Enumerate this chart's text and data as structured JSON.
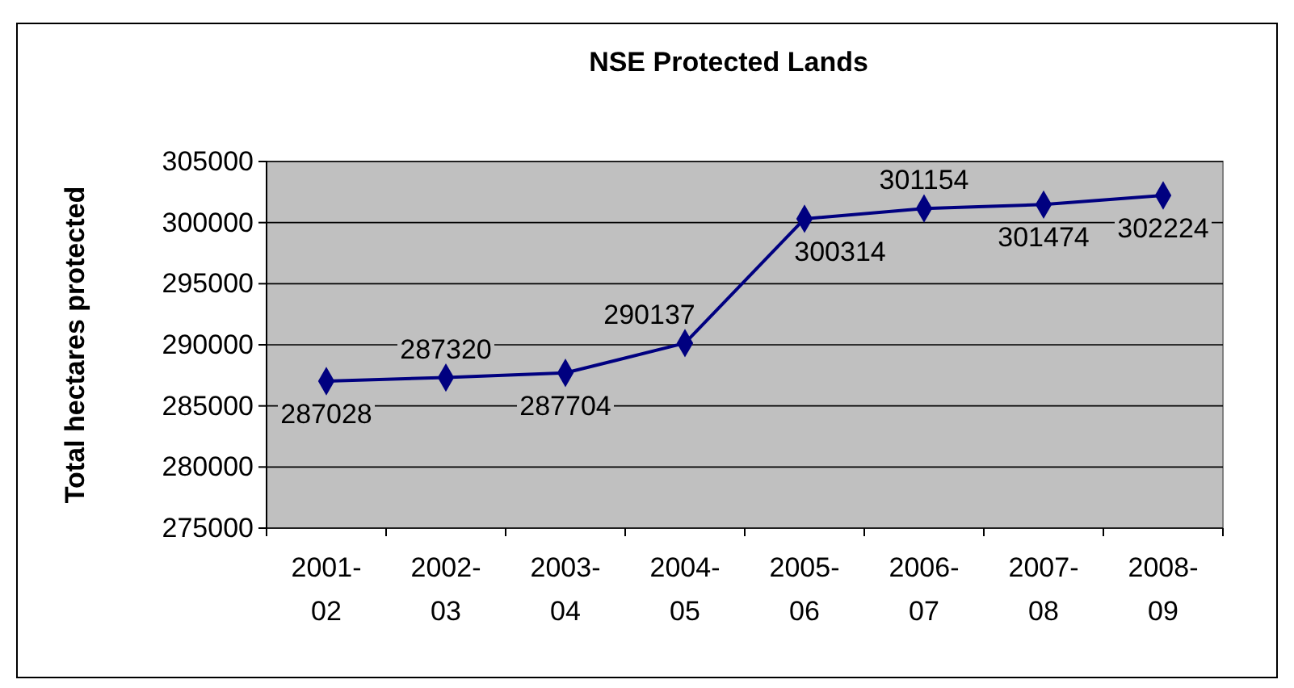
{
  "chart_data": {
    "type": "line",
    "title": "NSE Protected Lands",
    "ylabel": "Total hectares protected",
    "categories": [
      "2001-02",
      "2002-03",
      "2003-04",
      "2004-05",
      "2005-06",
      "2006-07",
      "2007-08",
      "2008-09"
    ],
    "series": [
      {
        "color": "#000080",
        "values": [
          287028,
          287320,
          287704,
          290137,
          300314,
          301154,
          301474,
          302224
        ]
      }
    ],
    "ylim": [
      275000,
      305000
    ],
    "yticks": [
      275000,
      280000,
      285000,
      290000,
      295000,
      300000,
      305000
    ],
    "grid": "y",
    "marker": "diamond",
    "line_style": "solid",
    "data_labels": true
  }
}
